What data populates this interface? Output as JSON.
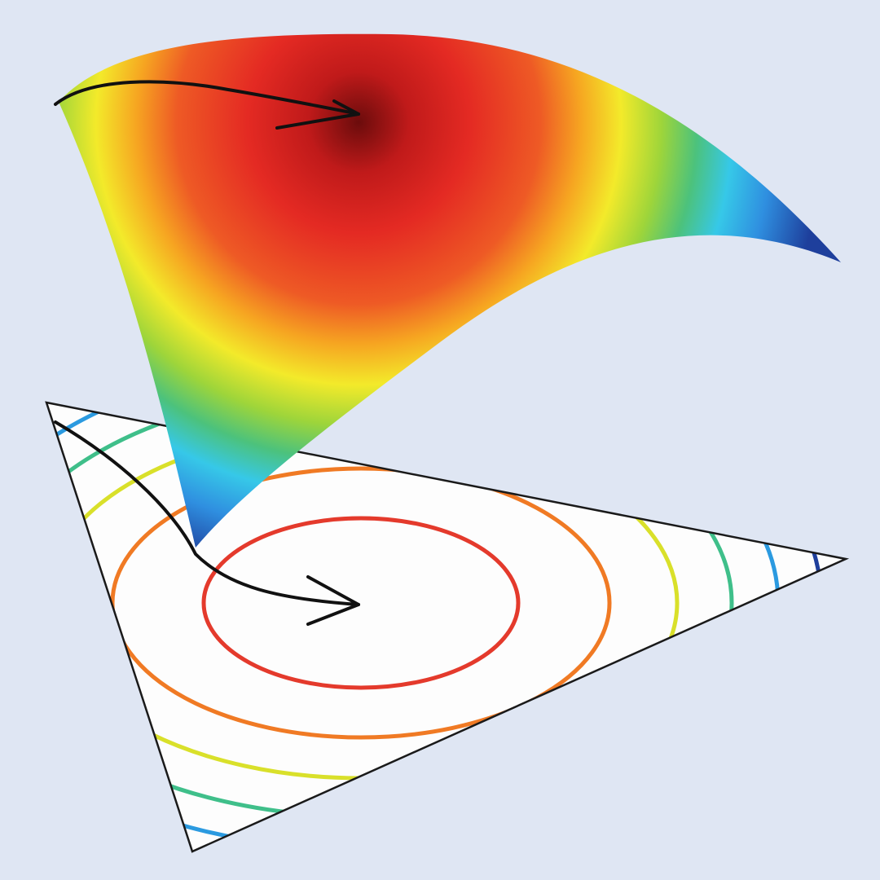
{
  "colors": {
    "background": "#dfe6f3",
    "triangle_fill": "#fdfdfd",
    "outline": "#1a1a1a",
    "arrow": "#111111",
    "colormap": [
      "#1e3f9c",
      "#2f8fe0",
      "#36c8e8",
      "#4cc27c",
      "#9ed53a",
      "#f3ea2a",
      "#f6a521",
      "#ee5a25",
      "#e42a23",
      "#c01a1a",
      "#6b0c0c"
    ],
    "contour_levels": [
      "#1e3f9c",
      "#2b9ae0",
      "#3fbf8a",
      "#d9e02a",
      "#f07a24",
      "#e43a2c"
    ]
  },
  "icons": {
    "surface": "surface-icon",
    "simplex": "simplex-triangle-icon",
    "arrow": "arrow-icon"
  }
}
